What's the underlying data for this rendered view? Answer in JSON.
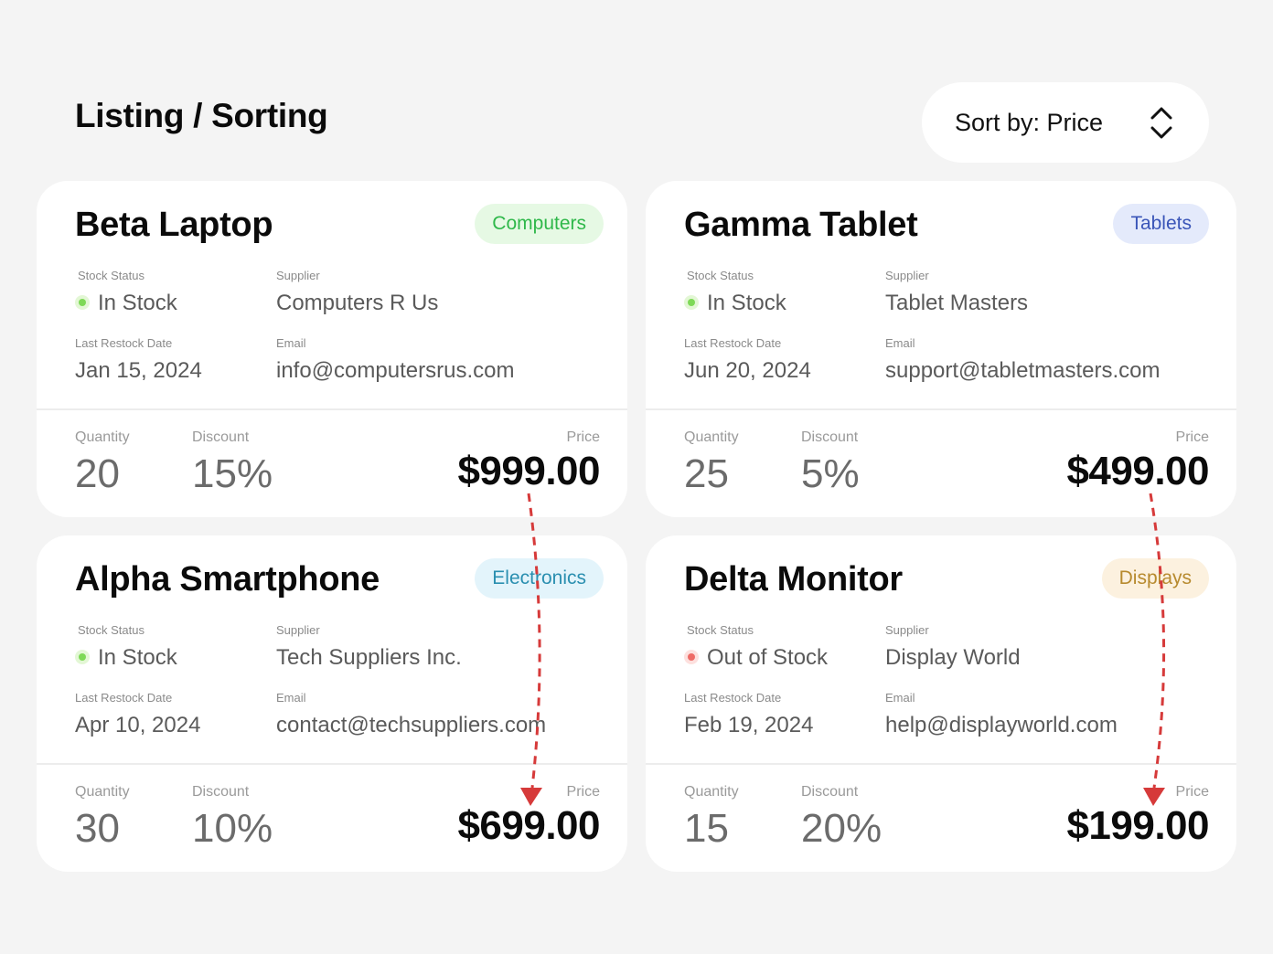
{
  "header": {
    "title": "Listing / Sorting",
    "sort_label": "Sort by: Price",
    "sort_icon": "chevron-up-down-icon"
  },
  "labels": {
    "stock_status": "Stock Status",
    "supplier": "Supplier",
    "last_restock": "Last Restock Date",
    "email": "Email",
    "quantity": "Quantity",
    "discount": "Discount",
    "price": "Price"
  },
  "products": [
    {
      "name": "Beta Laptop",
      "category": "Computers",
      "category_color": "#2fb84a",
      "category_bg": "#e6f9e4",
      "stock_status": "In Stock",
      "status_color": "#7ed957",
      "supplier": "Computers R Us",
      "last_restock": "Jan 15, 2024",
      "email": "info@computersrus.com",
      "quantity": "20",
      "discount": "15%",
      "price": "$999.00"
    },
    {
      "name": "Gamma Tablet",
      "category": "Tablets",
      "category_color": "#3a55b8",
      "category_bg": "#e4eafb",
      "stock_status": "In Stock",
      "status_color": "#7ed957",
      "supplier": "Tablet Masters",
      "last_restock": "Jun 20, 2024",
      "email": "support@tabletmasters.com",
      "quantity": "25",
      "discount": "5%",
      "price": "$499.00"
    },
    {
      "name": "Alpha Smartphone",
      "category": "Electronics",
      "category_color": "#2a8fb0",
      "category_bg": "#e3f4fb",
      "stock_status": "In Stock",
      "status_color": "#7ed957",
      "supplier": "Tech Suppliers Inc.",
      "last_restock": "Apr 10, 2024",
      "email": "contact@techsuppliers.com",
      "quantity": "30",
      "discount": "10%",
      "price": "$699.00"
    },
    {
      "name": "Delta Monitor",
      "category": "Displays",
      "category_color": "#b78a2e",
      "category_bg": "#fcf1df",
      "stock_status": "Out of Stock",
      "status_color": "#ee6b66",
      "supplier": "Display World",
      "last_restock": "Feb 19, 2024",
      "email": "help@displayworld.com",
      "quantity": "15",
      "discount": "20%",
      "price": "$199.00"
    }
  ],
  "annotation_color": "#d63a3a"
}
